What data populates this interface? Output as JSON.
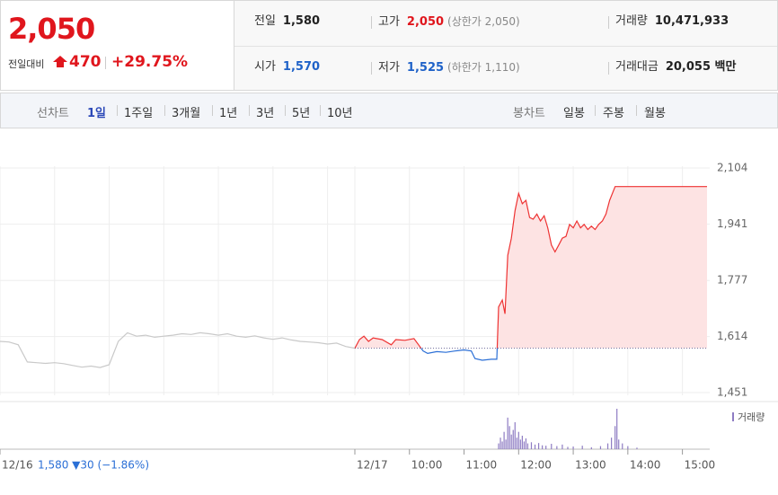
{
  "header": {
    "price": "2,050",
    "change_label": "전일대비",
    "change": "470",
    "change_pct": "+29.75%",
    "stats": [
      {
        "label": "전일",
        "value": "1,580",
        "color": "#222222"
      },
      {
        "label": "고가",
        "value": "2,050",
        "note": "(상한가 2,050)",
        "color": "#e0161d"
      },
      {
        "label": "거래량",
        "value": "10,471,933",
        "color": "#222222"
      },
      {
        "label": "시가",
        "value": "1,570",
        "color": "#1f62c8"
      },
      {
        "label": "저가",
        "value": "1,525",
        "note": "(하한가 1,110)",
        "color": "#1f62c8"
      },
      {
        "label": "거래대금",
        "value": "20,055 백만",
        "color": "#222222"
      }
    ]
  },
  "tabs": {
    "line_label": "선차트",
    "line": [
      "1일",
      "1주일",
      "3개월",
      "1년",
      "3년",
      "5년",
      "10년"
    ],
    "candle_label": "봉차트",
    "candle": [
      "일봉",
      "주봉",
      "월봉"
    ]
  },
  "chart_data": {
    "type": "line",
    "xlim": [
      0,
      780
    ],
    "ylim": [
      1451,
      2104
    ],
    "yticks": [
      {
        "value": 1451,
        "label": "1,451"
      },
      {
        "value": 1614,
        "label": "1,614"
      },
      {
        "value": 1777,
        "label": "1,777"
      },
      {
        "value": 1941,
        "label": "1,941"
      },
      {
        "value": 2104,
        "label": "2,104"
      }
    ],
    "xticks": [
      {
        "value": 0,
        "label": "12/16"
      },
      {
        "value": 390,
        "label": "12/17"
      },
      {
        "value": 450,
        "label": "10:00"
      },
      {
        "value": 510,
        "label": "11:00"
      },
      {
        "value": 570,
        "label": "12:00"
      },
      {
        "value": 630,
        "label": "13:00"
      },
      {
        "value": 690,
        "label": "14:00"
      },
      {
        "value": 750,
        "label": "15:00"
      }
    ],
    "xgrid": [
      60,
      120,
      180,
      240,
      300,
      360
    ],
    "prev_note": "1,580 ▼30 (−1.86%)",
    "baseline": 1580,
    "series": [
      {
        "color": "#c9c9c9",
        "x": [
          0,
          10,
          20,
          30,
          40,
          50,
          60,
          70,
          80,
          90,
          100,
          110,
          120,
          130,
          140,
          150,
          160,
          170,
          180,
          190,
          200,
          210,
          220,
          230,
          240,
          250,
          260,
          270,
          280,
          290,
          300,
          310,
          320,
          330,
          340,
          350,
          360,
          370,
          380,
          390
        ],
        "values": [
          1600,
          1598,
          1590,
          1540,
          1538,
          1536,
          1538,
          1535,
          1530,
          1525,
          1528,
          1524,
          1532,
          1600,
          1625,
          1615,
          1618,
          1612,
          1615,
          1618,
          1622,
          1620,
          1625,
          1622,
          1618,
          1622,
          1615,
          1612,
          1616,
          1610,
          1606,
          1610,
          1604,
          1600,
          1598,
          1596,
          1592,
          1595,
          1585,
          1580
        ]
      },
      {
        "color": "#ee3333",
        "down_color": "#2b6fd6",
        "fill": "#fde3e3",
        "x": [
          390,
          395,
          400,
          405,
          410,
          420,
          430,
          435,
          445,
          455,
          460,
          465,
          470,
          480,
          490,
          500,
          510,
          518,
          522,
          530,
          540,
          546,
          548,
          552,
          555,
          558,
          562,
          566,
          570,
          574,
          578,
          582,
          586,
          590,
          594,
          598,
          602,
          606,
          610,
          614,
          618,
          622,
          626,
          630,
          634,
          638,
          642,
          646,
          650,
          654,
          658,
          662,
          666,
          670,
          676,
          700,
          740,
          777
        ],
        "values": [
          1580,
          1605,
          1615,
          1600,
          1610,
          1605,
          1590,
          1605,
          1603,
          1608,
          1590,
          1572,
          1565,
          1570,
          1568,
          1572,
          1575,
          1572,
          1550,
          1545,
          1548,
          1548,
          1700,
          1720,
          1680,
          1850,
          1900,
          1980,
          2030,
          2000,
          2010,
          1960,
          1955,
          1970,
          1950,
          1965,
          1930,
          1880,
          1860,
          1880,
          1900,
          1905,
          1940,
          1930,
          1950,
          1930,
          1940,
          1925,
          1935,
          1925,
          1940,
          1950,
          1970,
          2010,
          2050,
          2050,
          2050,
          2050
        ]
      }
    ],
    "volume": {
      "legend": "거래량",
      "color": "#8e7cc3",
      "x": [
        548,
        550,
        552,
        554,
        556,
        558,
        560,
        562,
        564,
        566,
        568,
        570,
        572,
        574,
        576,
        578,
        580,
        584,
        588,
        592,
        596,
        600,
        606,
        612,
        618,
        624,
        630,
        640,
        650,
        660,
        668,
        672,
        676,
        678,
        680,
        684,
        690,
        700
      ],
      "values": [
        150000,
        300000,
        200000,
        450000,
        250000,
        820000,
        600000,
        380000,
        500000,
        700000,
        300000,
        450000,
        250000,
        350000,
        200000,
        280000,
        150000,
        180000,
        120000,
        160000,
        100000,
        90000,
        140000,
        80000,
        120000,
        60000,
        70000,
        90000,
        50000,
        80000,
        150000,
        300000,
        600000,
        1050000,
        250000,
        150000,
        80000,
        40000
      ]
    }
  }
}
